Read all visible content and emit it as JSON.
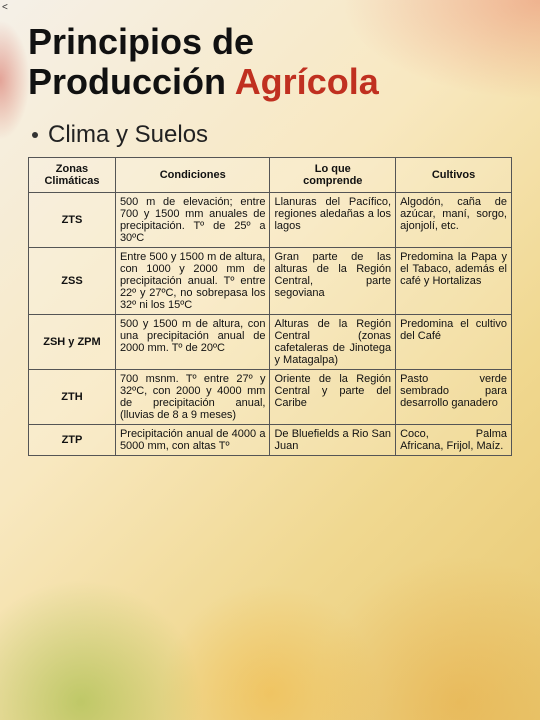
{
  "corner_mark": "<",
  "title_line1": "Principios de",
  "title_line2_plain": "Producción ",
  "title_line2_accent": "Agrícola",
  "section_heading": "Clima y Suelos",
  "table": {
    "headers": {
      "h1_l1": "Zonas",
      "h1_l2": "Climáticas",
      "h2": "Condiciones",
      "h3_l1": "Lo que",
      "h3_l2": "comprende",
      "h4": "Cultivos"
    },
    "rows": [
      {
        "zone": "ZTS",
        "cond": "500 m de elevación; entre 700 y 1500 mm anuales de precipitación. Tº de 25º a 30ºC",
        "comp": "Llanuras del Pacífico, regiones aledañas a los lagos",
        "cult": "Algodón, caña de azúcar, maní, sorgo, ajonjolí, etc."
      },
      {
        "zone": "ZSS",
        "cond": "Entre 500 y 1500 m de altura, con 1000 y 2000 mm de precipitación anual. Tº entre 22º y 27ºC, no sobrepasa los 32º ni los 15ºC",
        "comp": "Gran parte de las alturas de la Región Central, parte segoviana",
        "cult": "Predomina la Papa y el Tabaco, además el café y Hortalizas"
      },
      {
        "zone": "ZSH y ZPM",
        "cond": "500 y 1500 m de altura, con una precipitación anual de 2000 mm. Tº de 20ºC",
        "comp": "Alturas de la Región Central (zonas cafetaleras de Jinotega y Matagalpa)",
        "cult": "Predomina el cultivo del Café"
      },
      {
        "zone": "ZTH",
        "cond": "700 msnm. Tº entre 27º y 32ºC, con 2000 y 4000 mm de precipitación anual, (lluvias de 8 a 9 meses)",
        "comp": "Oriente de la Región Central y parte del Caribe",
        "cult": "Pasto verde sembrado para desarrollo ganadero"
      },
      {
        "zone": "ZTP",
        "cond": "Precipitación anual de 4000 a 5000 mm, con altas Tº",
        "comp": "De Bluefields a Rio San Juan",
        "cult": "Coco, Palma Africana, Frijol, Maíz."
      }
    ]
  },
  "colors": {
    "title_accent": "#c03020",
    "border": "#555555",
    "text": "#111111"
  }
}
